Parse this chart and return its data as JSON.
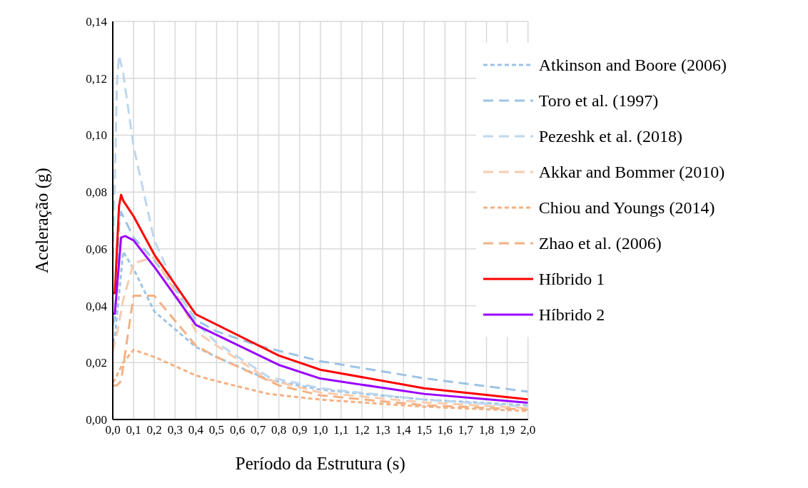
{
  "chart_data": {
    "type": "line",
    "xlabel": "Período da Estrutura (s)",
    "ylabel": "Aceleração (g)",
    "xlim": [
      0,
      2.0
    ],
    "ylim": [
      0,
      0.14
    ],
    "xticks": [
      {
        "value": 0,
        "label": "0,0"
      },
      {
        "value": 0.1,
        "label": "0,1"
      },
      {
        "value": 0.2,
        "label": "0,2"
      },
      {
        "value": 0.3,
        "label": "0,3"
      },
      {
        "value": 0.4,
        "label": "0,4"
      },
      {
        "value": 0.5,
        "label": "0,5"
      },
      {
        "value": 0.6,
        "label": "0,6"
      },
      {
        "value": 0.7,
        "label": "0,7"
      },
      {
        "value": 0.8,
        "label": "0,8"
      },
      {
        "value": 0.9,
        "label": "0,9"
      },
      {
        "value": 1.0,
        "label": "1,0"
      },
      {
        "value": 1.1,
        "label": "1,1"
      },
      {
        "value": 1.2,
        "label": "1,2"
      },
      {
        "value": 1.3,
        "label": "1,3"
      },
      {
        "value": 1.4,
        "label": "1,4"
      },
      {
        "value": 1.5,
        "label": "1,5"
      },
      {
        "value": 1.6,
        "label": "1,6"
      },
      {
        "value": 1.7,
        "label": "1,7"
      },
      {
        "value": 1.8,
        "label": "1,8"
      },
      {
        "value": 1.9,
        "label": "1,9"
      },
      {
        "value": 2.0,
        "label": "2,0"
      }
    ],
    "yticks": [
      {
        "value": 0,
        "label": "0,00"
      },
      {
        "value": 0.02,
        "label": "0,02"
      },
      {
        "value": 0.04,
        "label": "0,04"
      },
      {
        "value": 0.06,
        "label": "0,06"
      },
      {
        "value": 0.08,
        "label": "0,08"
      },
      {
        "value": 0.1,
        "label": "0,10"
      },
      {
        "value": 0.12,
        "label": "0,12"
      },
      {
        "value": 0.14,
        "label": "0,14"
      }
    ],
    "grid": true,
    "legend": "top right",
    "marker": "none",
    "series": [
      {
        "name": "Atkinson and Boore (2006)",
        "color": "#9dc3e6",
        "line_style": "dotted",
        "x": [
          0,
          0.01,
          0.05,
          0.1,
          0.2,
          0.4,
          0.5,
          0.75,
          1.0,
          1.5,
          2.0
        ],
        "values": [
          0.027,
          0.029,
          0.059,
          0.053,
          0.038,
          0.0255,
          0.022,
          0.014,
          0.0105,
          0.007,
          0.005
        ]
      },
      {
        "name": "Toro et al. (1997)",
        "color": "#9dc3e6",
        "line_style": "dashed",
        "x": [
          0,
          0.01,
          0.03,
          0.04,
          0.1,
          0.2,
          0.3,
          0.4,
          0.5,
          0.7,
          1.0,
          1.5,
          2.0
        ],
        "values": [
          0.033,
          0.036,
          0.068,
          0.073,
          0.064,
          0.056,
          0.046,
          0.035,
          0.031,
          0.026,
          0.0205,
          0.0145,
          0.0098
        ]
      },
      {
        "name": "Pezeshk et al. (2018)",
        "color": "#bdd7ee",
        "line_style": "dashed",
        "x": [
          0,
          0.01,
          0.02,
          0.03,
          0.05,
          0.1,
          0.2,
          0.3,
          0.4,
          0.5,
          0.75,
          1.0,
          1.5,
          2.0
        ],
        "values": [
          0.057,
          0.085,
          0.118,
          0.128,
          0.122,
          0.096,
          0.063,
          0.047,
          0.034,
          0.027,
          0.015,
          0.011,
          0.007,
          0.0045
        ]
      },
      {
        "name": "Akkar and Bommer (2010)",
        "color": "#f8cbad",
        "line_style": "dashed",
        "x": [
          0,
          0.02,
          0.05,
          0.1,
          0.2,
          0.3,
          0.4,
          0.5,
          0.75,
          1.0,
          1.5,
          2.0
        ],
        "values": [
          0.024,
          0.03,
          0.042,
          0.055,
          0.057,
          0.045,
          0.031,
          0.026,
          0.014,
          0.0095,
          0.006,
          0.004
        ]
      },
      {
        "name": "Chiou and Youngs (2014)",
        "color": "#f4b183",
        "line_style": "dotted",
        "x": [
          0,
          0.01,
          0.05,
          0.1,
          0.2,
          0.4,
          0.5,
          0.75,
          1.0,
          1.5,
          2.0
        ],
        "values": [
          0.013,
          0.014,
          0.02,
          0.0245,
          0.022,
          0.0155,
          0.0135,
          0.009,
          0.007,
          0.0045,
          0.003
        ]
      },
      {
        "name": "Zhao et al. (2006)",
        "color": "#f4b183",
        "line_style": "dashed",
        "x": [
          0,
          0.02,
          0.04,
          0.1,
          0.2,
          0.4,
          0.5,
          0.8,
          1.0,
          1.5,
          2.0
        ],
        "values": [
          0.012,
          0.012,
          0.0135,
          0.0435,
          0.0435,
          0.026,
          0.022,
          0.012,
          0.0085,
          0.005,
          0.0035
        ]
      },
      {
        "name": "Híbrido 1",
        "color": "#ff0000",
        "line_style": "solid",
        "x": [
          0,
          0.01,
          0.03,
          0.04,
          0.05,
          0.1,
          0.2,
          0.4,
          0.8,
          1.0,
          1.5,
          2.0
        ],
        "values": [
          0.0445,
          0.0445,
          0.075,
          0.079,
          0.077,
          0.0715,
          0.058,
          0.037,
          0.0225,
          0.0175,
          0.011,
          0.0071
        ]
      },
      {
        "name": "Híbrido 2",
        "color": "#9900ff",
        "line_style": "solid",
        "x": [
          0,
          0.01,
          0.04,
          0.06,
          0.1,
          0.2,
          0.4,
          0.8,
          1.0,
          1.5,
          2.0
        ],
        "values": [
          0.0372,
          0.0372,
          0.064,
          0.0645,
          0.063,
          0.0537,
          0.0333,
          0.0192,
          0.0144,
          0.009,
          0.0059
        ]
      }
    ]
  }
}
